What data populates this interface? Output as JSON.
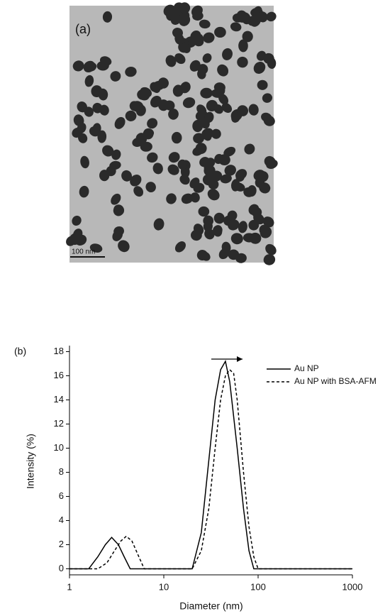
{
  "panel_a": {
    "label": "(a)",
    "scale_bar": "100 nm"
  },
  "chart_data": {
    "type": "line",
    "panel_label": "(b)",
    "x_label": "Diameter (nm)",
    "y_label": "Intensity (%)",
    "xscale": "log",
    "xlim": [
      1,
      1000
    ],
    "xticks": [
      1,
      10,
      100,
      1000
    ],
    "ylim": [
      -0.5,
      18.5
    ],
    "yticks": [
      0,
      2,
      4,
      6,
      8,
      10,
      12,
      14,
      16,
      18
    ],
    "legend": "upper right",
    "series": [
      {
        "name": "Au NP",
        "color": "#000000",
        "dashed": false,
        "x": [
          1,
          1.6,
          2.0,
          2.4,
          2.8,
          3.3,
          3.8,
          4.4,
          20,
          25,
          30,
          35,
          40,
          45,
          50,
          60,
          70,
          80,
          90,
          1000
        ],
        "y": [
          0,
          0,
          1.0,
          2.0,
          2.6,
          2.0,
          1.0,
          0,
          0,
          3,
          9,
          14,
          16.5,
          17.2,
          15.5,
          10,
          5,
          1.5,
          0,
          0
        ]
      },
      {
        "name": "Au NP with BSA-AFM",
        "color": "#000000",
        "dashed": true,
        "x": [
          1,
          2.0,
          2.5,
          3,
          3.5,
          4,
          4.6,
          5.3,
          6.2,
          20,
          25,
          30,
          35,
          40,
          45,
          50,
          55,
          60,
          70,
          80,
          90,
          100,
          1000
        ],
        "y": [
          0,
          0,
          0.5,
          1.5,
          2.3,
          2.7,
          2.3,
          1.2,
          0,
          0,
          1.5,
          5,
          10,
          14,
          16,
          16.5,
          16.2,
          14,
          8,
          3.5,
          1,
          0,
          0
        ]
      }
    ]
  }
}
